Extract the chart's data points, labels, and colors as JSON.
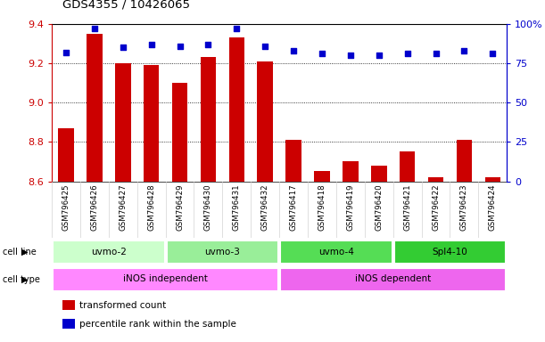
{
  "title": "GDS4355 / 10426065",
  "samples": [
    "GSM796425",
    "GSM796426",
    "GSM796427",
    "GSM796428",
    "GSM796429",
    "GSM796430",
    "GSM796431",
    "GSM796432",
    "GSM796417",
    "GSM796418",
    "GSM796419",
    "GSM796420",
    "GSM796421",
    "GSM796422",
    "GSM796423",
    "GSM796424"
  ],
  "transformed_count": [
    8.87,
    9.35,
    9.2,
    9.19,
    9.1,
    9.23,
    9.33,
    9.21,
    8.81,
    8.65,
    8.7,
    8.68,
    8.75,
    8.62,
    8.81,
    8.62
  ],
  "percentile_rank": [
    82,
    97,
    85,
    87,
    86,
    87,
    97,
    86,
    83,
    81,
    80,
    80,
    81,
    81,
    83,
    81
  ],
  "ylim_left": [
    8.6,
    9.4
  ],
  "ylim_right": [
    0,
    100
  ],
  "yticks_left": [
    8.6,
    8.8,
    9.0,
    9.2,
    9.4
  ],
  "yticks_right": [
    0,
    25,
    50,
    75,
    100
  ],
  "cell_lines": [
    {
      "label": "uvmo-2",
      "start": 0,
      "end": 4,
      "color": "#ccffcc"
    },
    {
      "label": "uvmo-3",
      "start": 4,
      "end": 8,
      "color": "#99ee99"
    },
    {
      "label": "uvmo-4",
      "start": 8,
      "end": 12,
      "color": "#55dd55"
    },
    {
      "label": "Spl4-10",
      "start": 12,
      "end": 16,
      "color": "#33cc33"
    }
  ],
  "cell_types": [
    {
      "label": "iNOS independent",
      "start": 0,
      "end": 8,
      "color": "#ff88ff"
    },
    {
      "label": "iNOS dependent",
      "start": 8,
      "end": 16,
      "color": "#ee66ee"
    }
  ],
  "bar_color": "#cc0000",
  "dot_color": "#0000cc",
  "left_axis_color": "#cc0000",
  "right_axis_color": "#0000cc",
  "legend_items": [
    {
      "label": "transformed count",
      "color": "#cc0000"
    },
    {
      "label": "percentile rank within the sample",
      "color": "#0000cc"
    }
  ]
}
